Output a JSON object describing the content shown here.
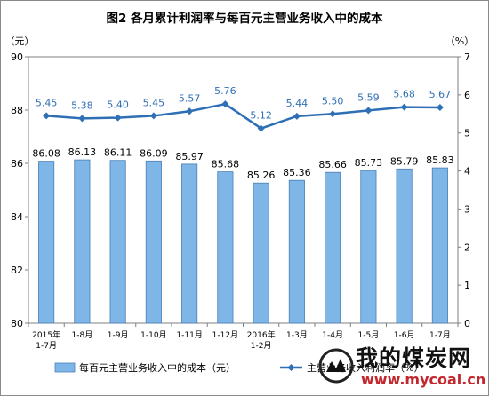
{
  "chart_data": {
    "type": "bar",
    "title": "图2 各月累计利润率与每百元主营业务收入中的成本",
    "left_unit": "（元）",
    "right_unit": "（%）",
    "categories": [
      [
        "2015年",
        "1-7月"
      ],
      [
        "1-8月"
      ],
      [
        "1-9月"
      ],
      [
        "1-10月"
      ],
      [
        "1-11月"
      ],
      [
        "1-12月"
      ],
      [
        "2016年",
        "1-2月"
      ],
      [
        "1-3月"
      ],
      [
        "1-4月"
      ],
      [
        "1-5月"
      ],
      [
        "1-6月"
      ],
      [
        "1-7月"
      ]
    ],
    "left_axis": {
      "min": 80,
      "max": 90,
      "ticks": [
        "80",
        "82",
        "84",
        "86",
        "88",
        "90"
      ]
    },
    "right_axis": {
      "min": 0,
      "max": 7,
      "ticks": [
        "0",
        "1",
        "2",
        "3",
        "4",
        "5",
        "6",
        "7"
      ]
    },
    "series": [
      {
        "name": "每百元主营业务收入中的成本（元）",
        "type": "bar",
        "axis": "left",
        "color": "#7fb6e8",
        "values": [
          86.08,
          86.13,
          86.11,
          86.09,
          85.97,
          85.68,
          85.26,
          85.36,
          85.66,
          85.73,
          85.79,
          85.83
        ],
        "labels": [
          "86.08",
          "86.13",
          "86.11",
          "86.09",
          "85.97",
          "85.68",
          "85.26",
          "85.36",
          "85.66",
          "85.73",
          "85.79",
          "85.83"
        ]
      },
      {
        "name": "主营业务收入利润率（%）",
        "type": "line",
        "axis": "right",
        "color": "#2f6fb5",
        "values": [
          5.45,
          5.38,
          5.4,
          5.45,
          5.57,
          5.76,
          5.12,
          5.44,
          5.5,
          5.59,
          5.68,
          5.67
        ],
        "labels": [
          "5.45",
          "5.38",
          "5.40",
          "5.45",
          "5.57",
          "5.76",
          "5.12",
          "5.44",
          "5.50",
          "5.59",
          "5.68",
          "5.67"
        ]
      }
    ],
    "legend_position": "bottom",
    "grid": false
  },
  "watermark": {
    "text": "我的煤炭网",
    "url": "www.mycoal.cn"
  }
}
